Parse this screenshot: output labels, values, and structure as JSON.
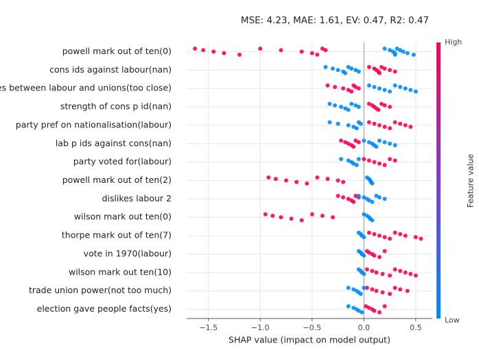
{
  "chart_data": {
    "type": "beeswarm",
    "title": "MSE: 4.23, MAE: 1.61, EV: 0.47, R2: 0.47",
    "xlabel": "SHAP value (impact on model output)",
    "colorbar_label": "Feature value",
    "categories": [
      "powell mark out of ten(0)",
      "cons ids against labour(nan)",
      "ties between labour and unions(too close)",
      "strength of cons p id(nan)",
      "party pref on nationalisation(labour)",
      "lab p ids against cons(nan)",
      "party voted for(labour)",
      "powell mark out of ten(2)",
      "dislikes labour 2",
      "wilson mark out ten(0)",
      "thorpe mark out of ten(7)",
      "vote in 1970(labour)",
      "wilson mark out ten(10)",
      "trade union power(not too much)",
      "election gave people facts(yes)"
    ],
    "xlim": [
      -1.71,
      0.66
    ],
    "xticks": [
      {
        "value": -1.5,
        "label": "−1.5"
      },
      {
        "value": -1.0,
        "label": "−1.0"
      },
      {
        "value": -0.5,
        "label": "−0.5"
      },
      {
        "value": 0.0,
        "label": "0.0"
      },
      0.5
    ],
    "grid": true,
    "series": [
      {
        "name": "High",
        "color": "#ff0052",
        "values": [
          [
            -1.63,
            -1.55,
            -1.45,
            -1.35,
            -1.2,
            -1.0,
            -0.8,
            -0.6,
            -0.5,
            -0.45,
            -0.4,
            -0.37
          ],
          [
            0.05,
            0.1,
            0.12,
            0.14,
            0.15,
            0.17,
            0.2,
            0.25,
            0.3
          ],
          [
            -0.35,
            -0.28,
            -0.2,
            -0.15,
            -0.12,
            -0.1,
            -0.08,
            -0.05
          ],
          [
            0.05,
            0.08,
            0.1,
            0.12,
            0.14,
            0.17,
            0.2,
            0.25
          ],
          [
            0.05,
            0.1,
            0.15,
            0.2,
            0.25,
            0.3,
            0.35,
            0.4,
            0.45
          ],
          [
            -0.22,
            -0.18,
            -0.15,
            -0.12,
            -0.1,
            -0.08,
            -0.05
          ],
          [
            0.0,
            0.05,
            0.1,
            0.15,
            0.2,
            0.25,
            0.3
          ],
          [
            -0.92,
            -0.85,
            -0.75,
            -0.65,
            -0.55,
            -0.45,
            -0.35,
            -0.25,
            -0.2
          ],
          [
            -0.25,
            -0.2,
            -0.15,
            -0.12,
            -0.1,
            -0.08,
            -0.05
          ],
          [
            -0.95,
            -0.88,
            -0.8,
            -0.7,
            -0.6,
            -0.5,
            -0.4,
            -0.3
          ],
          [
            0.05,
            0.1,
            0.15,
            0.2,
            0.25,
            0.3,
            0.35,
            0.4,
            0.5,
            0.55
          ],
          [
            0.03,
            0.05,
            0.08,
            0.1,
            0.15,
            0.2
          ],
          [
            0.03,
            0.08,
            0.12,
            0.18,
            0.25,
            0.3,
            0.35,
            0.4,
            0.45,
            0.5
          ],
          [
            0.03,
            0.08,
            0.12,
            0.18,
            0.25,
            0.3,
            0.35,
            0.42
          ],
          [
            0.02,
            0.05,
            0.08,
            0.1,
            0.15,
            0.2
          ]
        ]
      },
      {
        "name": "Low",
        "color": "#008bfb",
        "values": [
          [
            0.2,
            0.25,
            0.28,
            0.3,
            0.3,
            0.32,
            0.35,
            0.38,
            0.42,
            0.48
          ],
          [
            -0.37,
            -0.3,
            -0.25,
            -0.2,
            -0.18,
            -0.15,
            -0.12,
            -0.08,
            -0.05
          ],
          [
            0.05,
            0.1,
            0.15,
            0.2,
            0.25,
            0.3,
            0.35,
            0.4,
            0.45,
            0.5
          ],
          [
            -0.33,
            -0.28,
            -0.22,
            -0.18,
            -0.15,
            -0.12,
            -0.08,
            -0.05
          ],
          [
            -0.33,
            -0.25,
            -0.15,
            -0.1,
            -0.07,
            -0.05,
            -0.03
          ],
          [
            0.0,
            0.05,
            0.08,
            0.1,
            0.12,
            0.15,
            0.2,
            0.25,
            0.3
          ],
          [
            -0.22,
            -0.15,
            -0.12,
            -0.1,
            -0.07,
            -0.05
          ],
          [
            0.03,
            0.05,
            0.06,
            0.07,
            0.08
          ],
          [
            -0.05,
            0.0,
            0.03,
            0.05,
            0.08,
            0.12,
            0.15,
            0.2
          ],
          [
            0.0,
            0.03,
            0.05,
            0.06,
            0.08
          ],
          [
            -0.05,
            -0.03,
            -0.02,
            0.0
          ],
          [
            -0.05,
            -0.03,
            -0.02,
            0.0
          ],
          [
            -0.05,
            -0.03,
            -0.02,
            0.0
          ],
          [
            -0.15,
            -0.1,
            -0.07,
            -0.05,
            -0.03,
            0.0
          ],
          [
            -0.15,
            -0.1,
            -0.07,
            -0.05,
            -0.02
          ]
        ]
      }
    ]
  }
}
